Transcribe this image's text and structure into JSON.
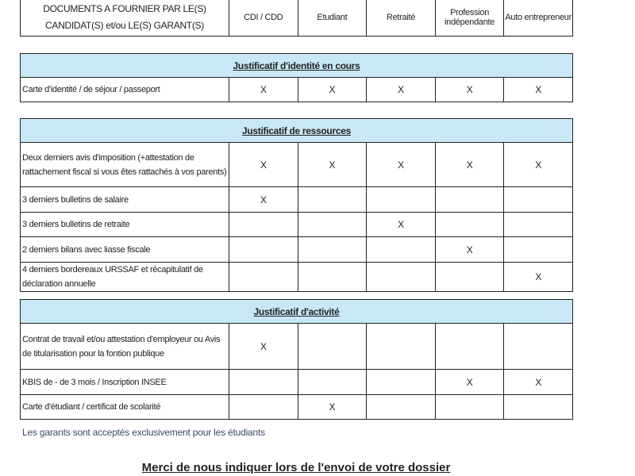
{
  "header": {
    "title": "DOCUMENTS A FOURNIER PAR LE(S) CANDIDAT(S) et/ou LE(S) GARANT(S)",
    "columns": [
      "CDI / CDD",
      "Etudiant",
      "Retraité",
      "Profession indépendante",
      "Auto entrepreneur"
    ]
  },
  "sections": [
    {
      "title": "Justificatif d'identité en cours",
      "rows": [
        {
          "label": "Carte d'identité / de séjour / passeport",
          "marks": [
            "X",
            "X",
            "X",
            "X",
            "X"
          ]
        }
      ]
    },
    {
      "title": "Justificatif de ressources",
      "rows": [
        {
          "label": "Deux derniers avis d'imposition (+attestation de rattachement fiscal si vous êtes rattachés à vos parents)",
          "marks": [
            "X",
            "X",
            "X",
            "X",
            "X"
          ]
        },
        {
          "label": "3 derniers bulletins de salaire",
          "marks": [
            "X",
            "",
            "",
            "",
            ""
          ]
        },
        {
          "label": "3 derniers bulletins de retraite",
          "marks": [
            "",
            "",
            "X",
            "",
            ""
          ]
        },
        {
          "label": "2 derniers bilans avec liasse fiscale",
          "marks": [
            "",
            "",
            "",
            "X",
            ""
          ]
        },
        {
          "label": "4 derniers bordereaux URSSAF et récapitulatif de déclaration annuelle",
          "marks": [
            "",
            "",
            "",
            "",
            "X"
          ]
        }
      ]
    },
    {
      "title": "Justificatif d'activité",
      "rows": [
        {
          "label": "Contrat de travail et/ou attestation d'employeur ou Avis de titularisation pour la fontion publique",
          "marks": [
            "X",
            "",
            "",
            "",
            ""
          ]
        },
        {
          "label": "KBIS de - de 3 mois / Inscription INSEE",
          "marks": [
            "",
            "",
            "",
            "X",
            "X"
          ]
        },
        {
          "label": "Carte d'étudiant / certificat de scolarité",
          "marks": [
            "",
            "X",
            "",
            "",
            ""
          ]
        }
      ]
    }
  ],
  "note": "Les garants sont acceptés exclusivement pour les étudiants",
  "footer": "Merci de nous indiquer lors de l'envoi de votre dossier",
  "colors": {
    "section_header_bg": "#c9e8f7",
    "note_text": "#3a4a66"
  }
}
